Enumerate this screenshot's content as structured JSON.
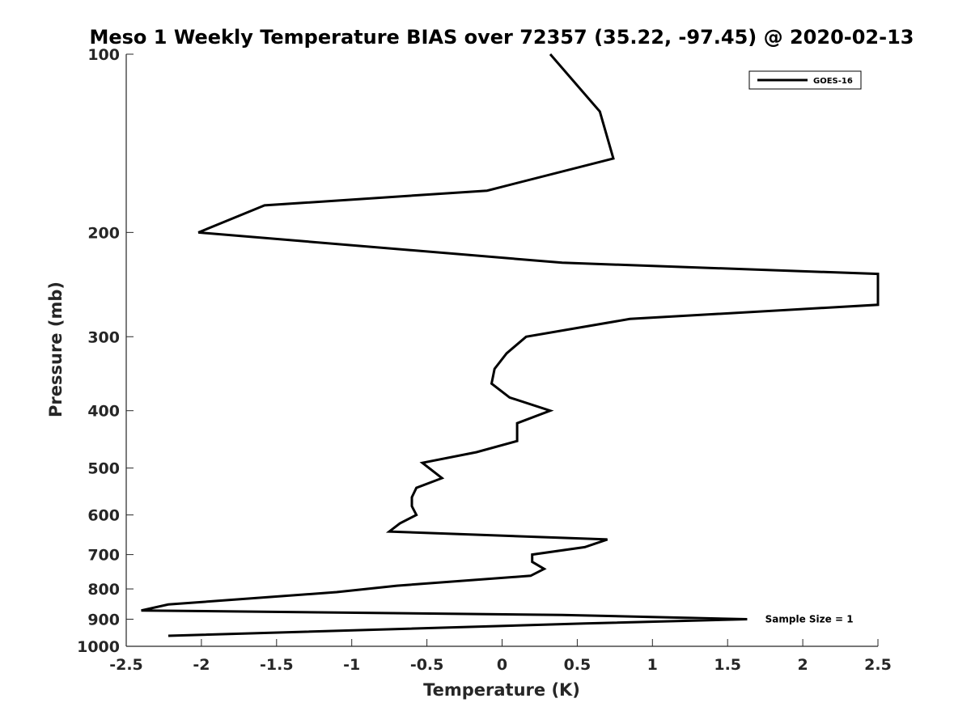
{
  "chart_data": {
    "type": "line",
    "title": "Meso 1 Weekly Temperature BIAS over 72357 (35.22, -97.45) @ 2020-02-13",
    "xlabel": "Temperature (K)",
    "ylabel": "Pressure (mb)",
    "xlim": [
      -2.5,
      2.5
    ],
    "ylim": [
      100,
      1000
    ],
    "y_scale": "log",
    "y_reversed": true,
    "x_ticks": [
      "-2.5",
      "-2",
      "-1.5",
      "-1",
      "-0.5",
      "0",
      "0.5",
      "1",
      "1.5",
      "2",
      "2.5"
    ],
    "x_tick_values": [
      -2.5,
      -2,
      -1.5,
      -1,
      -0.5,
      0,
      0.5,
      1,
      1.5,
      2,
      2.5
    ],
    "y_ticks": [
      "100",
      "200",
      "300",
      "400",
      "500",
      "600",
      "700",
      "800",
      "900",
      "1000"
    ],
    "y_tick_values": [
      100,
      200,
      300,
      400,
      500,
      600,
      700,
      800,
      900,
      1000
    ],
    "grid": false,
    "legend_position": "top-right",
    "annotation": "Sample Size = 1",
    "annotation_pressure": 900,
    "annotation_temperature": 1.75,
    "line_color": "#000000",
    "series": [
      {
        "name": "GOES-16",
        "points": [
          [
            0.32,
            100
          ],
          [
            0.65,
            125
          ],
          [
            0.74,
            150
          ],
          [
            -0.1,
            170
          ],
          [
            -1.58,
            180
          ],
          [
            -2.02,
            200
          ],
          [
            0.4,
            225
          ],
          [
            2.5,
            235
          ],
          [
            2.5,
            265
          ],
          [
            0.85,
            280
          ],
          [
            0.16,
            300
          ],
          [
            0.03,
            320
          ],
          [
            -0.05,
            340
          ],
          [
            -0.07,
            360
          ],
          [
            0.05,
            380
          ],
          [
            0.32,
            400
          ],
          [
            0.1,
            420
          ],
          [
            0.1,
            450
          ],
          [
            -0.17,
            470
          ],
          [
            -0.53,
            490
          ],
          [
            -0.4,
            520
          ],
          [
            -0.57,
            540
          ],
          [
            -0.6,
            560
          ],
          [
            -0.6,
            580
          ],
          [
            -0.57,
            600
          ],
          [
            -0.68,
            620
          ],
          [
            -0.75,
            640
          ],
          [
            0.7,
            660
          ],
          [
            0.55,
            680
          ],
          [
            0.2,
            700
          ],
          [
            0.2,
            720
          ],
          [
            0.28,
            740
          ],
          [
            0.19,
            760
          ],
          [
            -0.7,
            790
          ],
          [
            -1.1,
            810
          ],
          [
            -2.22,
            850
          ],
          [
            -2.4,
            870
          ],
          [
            0.4,
            885
          ],
          [
            1.63,
            900
          ],
          [
            0.55,
            915
          ],
          [
            -2.22,
            960
          ]
        ]
      }
    ]
  }
}
